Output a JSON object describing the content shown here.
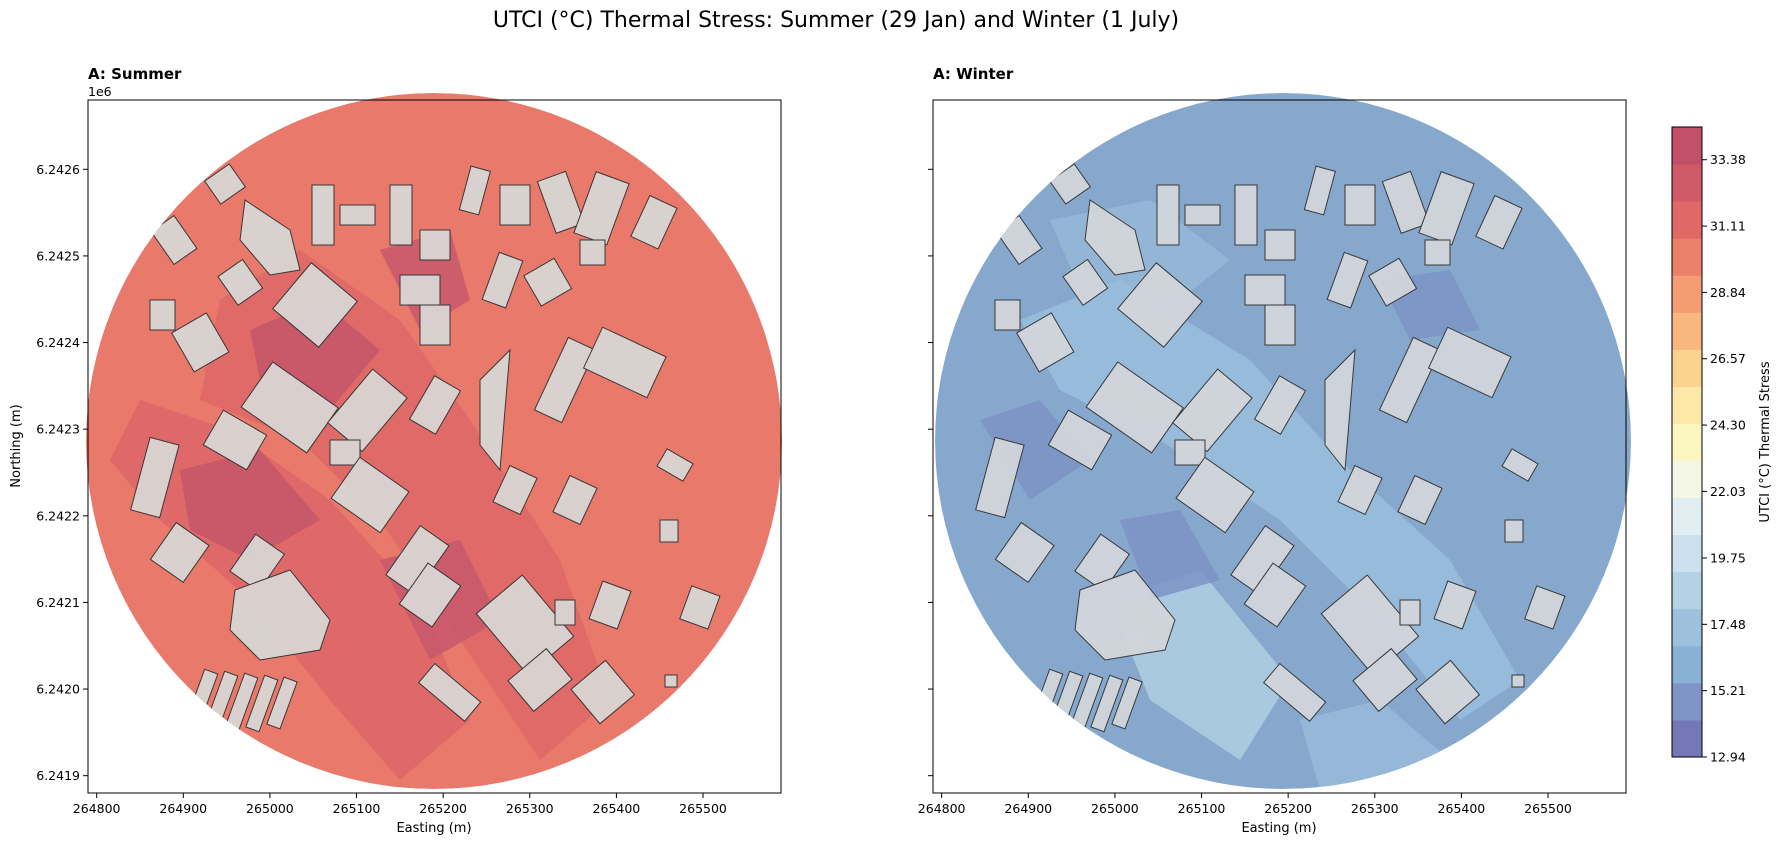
{
  "chart_data": {
    "title": "UTCI (°C) Thermal Stress: Summer (29 Jan) and Winter (1 July)",
    "type": "heatmap",
    "panels": [
      {
        "title": "A: Summer",
        "xlabel": "Easting (m)",
        "ylabel": "Northing (m)",
        "y_offset_label": "1e6",
        "xlim": [
          264790,
          265590
        ],
        "ylim": [
          6.24188,
          6.24268
        ],
        "xticks": [
          "264800",
          "264900",
          "265000",
          "265100",
          "265200",
          "265300",
          "265400",
          "265500"
        ],
        "yticks": [
          "6.2419",
          "6.2420",
          "6.2421",
          "6.2422",
          "6.2423",
          "6.2424",
          "6.2425",
          "6.2426"
        ],
        "dominant_utci_range": [
          30,
          34
        ],
        "colors": {
          "base": "#e8796b",
          "hot": "#c5566a",
          "warm": "#de6868",
          "halo": "#f7c787",
          "building": "#d9d6d4"
        }
      },
      {
        "title": "A: Winter",
        "xlabel": "Easting (m)",
        "ylabel": "",
        "xlim": [
          264790,
          265590
        ],
        "ylim": [
          6.24188,
          6.24268
        ],
        "xticks": [
          "264800",
          "264900",
          "265000",
          "265100",
          "265200",
          "265300",
          "265400",
          "265500"
        ],
        "dominant_utci_range": [
          12.94,
          19.75
        ],
        "colors": {
          "base": "#87a8cd",
          "cold": "#7b93c4",
          "cool": "#99bcdb",
          "pale": "#b2d1e4",
          "building": "#d2d5db"
        }
      }
    ],
    "colorbar": {
      "label": "UTCI (°C) Thermal Stress",
      "min": 12.94,
      "max": 34.5,
      "ticks": [
        "12.94",
        "15.21",
        "17.48",
        "19.75",
        "22.03",
        "24.30",
        "26.57",
        "28.84",
        "31.11",
        "33.38"
      ],
      "colors": [
        "#7478b6",
        "#7f95c7",
        "#8ab0d6",
        "#9dc0dd",
        "#b4d2e6",
        "#cbe1ee",
        "#e1eef2",
        "#f4f6e6",
        "#fcf6c2",
        "#fde7a9",
        "#fcd28f",
        "#f9b77f",
        "#f49d74",
        "#ec8069",
        "#e06867",
        "#d05b68",
        "#c25068"
      ]
    }
  }
}
